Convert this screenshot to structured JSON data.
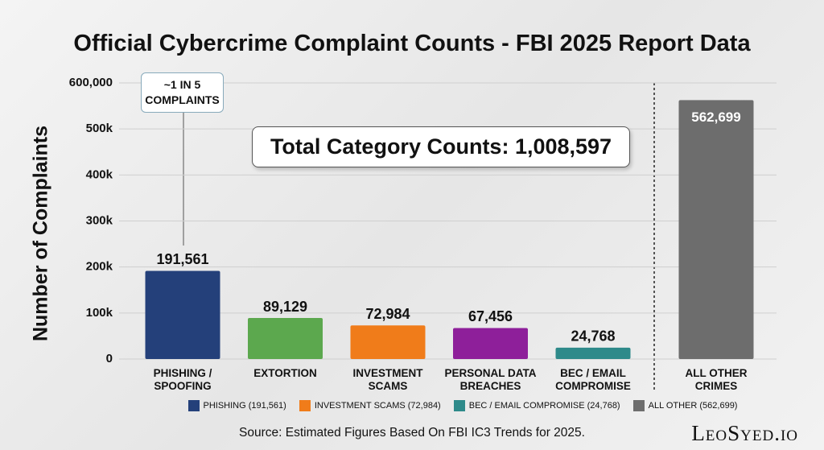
{
  "chart_data": {
    "type": "bar",
    "title": "Official Cybercrime Complaint Counts - FBI 2025 Report Data",
    "y_label": "Number of Complaints",
    "categories": [
      "PHISHING / SPOOFING",
      "EXTORTION",
      "INVESTMENT SCAMS",
      "PERSONAL DATA BREACHES",
      "BEC / EMAIL COMPROMISE",
      "ALL OTHER CRIMES"
    ],
    "values": [
      191561,
      89129,
      72984,
      67456,
      24768,
      562699
    ],
    "value_labels": [
      "191,561",
      "89,129",
      "72,984",
      "67,456",
      "24,768",
      "562,699"
    ],
    "colors": [
      "#24407a",
      "#5ca84e",
      "#f07c1a",
      "#8e1f9a",
      "#2e8a8a",
      "#6d6d6d"
    ],
    "ylim": [
      0,
      600000
    ],
    "yticks": [
      0,
      {
        "value": 100000,
        "label": "100k"
      },
      {
        "value": 200000,
        "label": "200k"
      },
      {
        "value": 300000,
        "label": "300k"
      },
      {
        "value": 400000,
        "label": "400k"
      },
      {
        "value": 500000,
        "label": "500k"
      },
      {
        "value": 600000,
        "label": "600,000"
      }
    ],
    "grid": true,
    "annotations": [
      "~1 IN 5 COMPLAINTS",
      "Total Category Counts: 1,008,597"
    ],
    "legend": [
      {
        "label": "PHISHING (191,561)",
        "color": "#24407a"
      },
      {
        "label": "INVESTMENT SCAMS (72,984)",
        "color": "#f07c1a"
      },
      {
        "label": "BEC / EMAIL COMPROMISE (24,768)",
        "color": "#2e8a8a"
      },
      {
        "label": "ALL OTHER (562,699)",
        "color": "#6d6d6d"
      }
    ],
    "source": "Source: Estimated Figures Based On FBI IC3 Trends for 2025.",
    "brand": "LeoSyed.io"
  }
}
